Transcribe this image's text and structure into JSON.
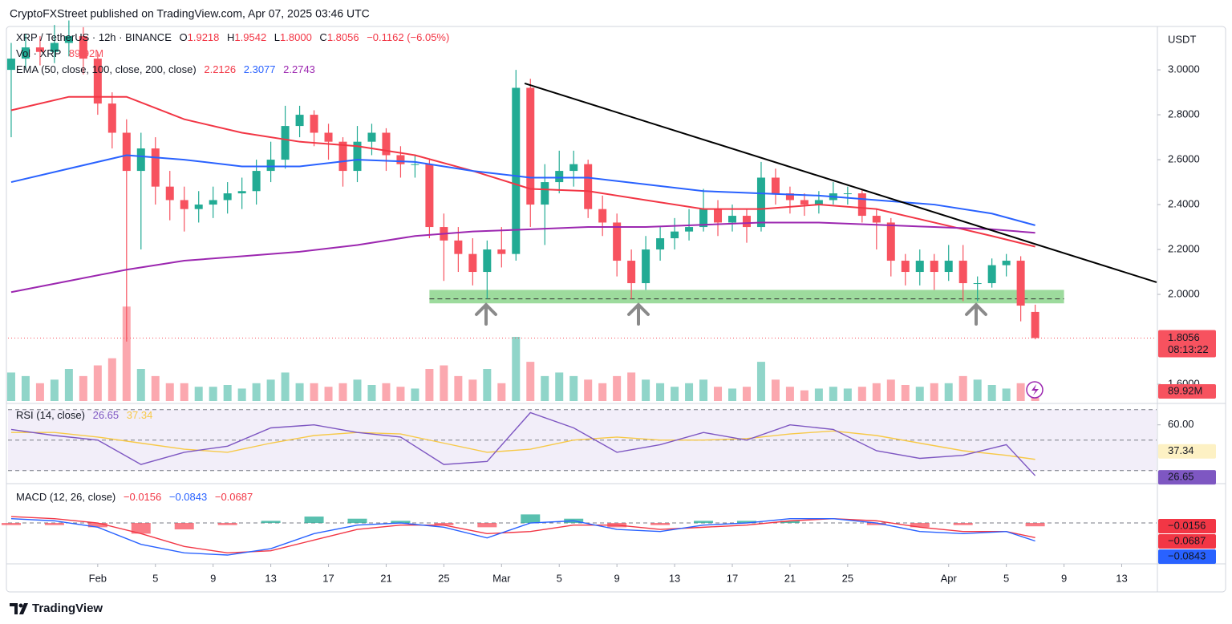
{
  "header": {
    "publisher": "CryptoFXStreet published on TradingView.com, Apr 07, 2025 03:46 UTC",
    "brand": "TradingView"
  },
  "chart_data": {
    "type": "candlestick",
    "currency": "USDT",
    "legend": {
      "symbol": "XRP / TetherUS · 12h · BINANCE",
      "o_label": "O",
      "open": "1.9218",
      "h_label": "H",
      "high": "1.9542",
      "l_label": "L",
      "low": "1.8000",
      "c_label": "C",
      "close": "1.8056",
      "change": "−0.1162 (−6.05%)",
      "ema_title": "EMA (50, close, 100, close, 200, close)"
    },
    "countdown": "08:13:22",
    "up_color": "#22ab94",
    "down_color": "#f7525f",
    "grid": false,
    "x": [
      "Jan 26",
      "Jan 27",
      "Jan 28",
      "Jan 29",
      "Jan 30",
      "Jan 31",
      "Feb 1",
      "Feb 2",
      "Feb 3",
      "Feb 4",
      "Feb 5",
      "Feb 6",
      "Feb 7",
      "Feb 8",
      "Feb 9",
      "Feb 10",
      "Feb 11",
      "Feb 12",
      "Feb 13",
      "Feb 14",
      "Feb 15",
      "Feb 16",
      "Feb 17",
      "Feb 18",
      "Feb 19",
      "Feb 20",
      "Feb 21",
      "Feb 22",
      "Feb 23",
      "Feb 24",
      "Feb 25",
      "Feb 26",
      "Feb 27",
      "Feb 28",
      "Mar 1",
      "Mar 2",
      "Mar 3",
      "Mar 4",
      "Mar 5",
      "Mar 6",
      "Mar 7",
      "Mar 8",
      "Mar 9",
      "Mar 10",
      "Mar 11",
      "Mar 12",
      "Mar 13",
      "Mar 14",
      "Mar 15",
      "Mar 16",
      "Mar 17",
      "Mar 18",
      "Mar 19",
      "Mar 20",
      "Mar 21",
      "Mar 22",
      "Mar 23",
      "Mar 24",
      "Mar 25",
      "Mar 26",
      "Mar 27",
      "Mar 28",
      "Mar 29",
      "Mar 30",
      "Mar 31",
      "Apr 1",
      "Apr 2",
      "Apr 3",
      "Apr 4",
      "Apr 5",
      "Apr 6",
      "Apr 7"
    ],
    "open": [
      3.0,
      3.05,
      3.1,
      3.08,
      3.12,
      3.15,
      3.05,
      2.85,
      2.72,
      2.55,
      2.65,
      2.48,
      2.42,
      2.38,
      2.4,
      2.42,
      2.45,
      2.46,
      2.55,
      2.6,
      2.75,
      2.8,
      2.72,
      2.68,
      2.55,
      2.68,
      2.72,
      2.62,
      2.58,
      2.58,
      2.3,
      2.24,
      2.18,
      2.1,
      2.2,
      2.18,
      2.92,
      2.4,
      2.5,
      2.55,
      2.58,
      2.38,
      2.32,
      2.15,
      2.05,
      2.2,
      2.25,
      2.28,
      2.3,
      2.38,
      2.32,
      2.35,
      2.3,
      2.52,
      2.45,
      2.42,
      2.4,
      2.42,
      2.45,
      2.45,
      2.35,
      2.32,
      2.15,
      2.1,
      2.15,
      2.1,
      2.15,
      2.05,
      2.05,
      2.13,
      2.15,
      1.9218
    ],
    "high": [
      3.12,
      3.16,
      3.15,
      3.2,
      3.22,
      3.19,
      3.08,
      2.9,
      2.78,
      2.72,
      2.7,
      2.55,
      2.48,
      2.46,
      2.48,
      2.5,
      2.52,
      2.6,
      2.68,
      2.84,
      2.84,
      2.82,
      2.76,
      2.7,
      2.75,
      2.76,
      2.74,
      2.66,
      2.62,
      2.6,
      2.36,
      2.3,
      2.25,
      2.24,
      2.3,
      3.0,
      2.96,
      2.58,
      2.64,
      2.64,
      2.6,
      2.44,
      2.36,
      2.2,
      2.26,
      2.3,
      2.34,
      2.38,
      2.47,
      2.42,
      2.4,
      2.38,
      2.59,
      2.56,
      2.48,
      2.45,
      2.46,
      2.5,
      2.48,
      2.47,
      2.38,
      2.34,
      2.18,
      2.2,
      2.18,
      2.22,
      2.22,
      2.08,
      2.16,
      2.18,
      2.17,
      1.9542
    ],
    "low": [
      2.7,
      3.0,
      3.02,
      3.03,
      3.06,
      2.98,
      2.8,
      2.65,
      1.79,
      2.2,
      2.4,
      2.33,
      2.28,
      2.32,
      2.34,
      2.36,
      2.38,
      2.4,
      2.5,
      2.56,
      2.7,
      2.66,
      2.6,
      2.48,
      2.5,
      2.62,
      2.55,
      2.52,
      2.52,
      2.25,
      2.06,
      2.1,
      2.04,
      1.98,
      2.12,
      2.15,
      2.3,
      2.22,
      2.45,
      2.48,
      2.34,
      2.26,
      2.08,
      1.98,
      2.02,
      2.15,
      2.2,
      2.24,
      2.28,
      2.26,
      2.28,
      2.23,
      2.28,
      2.4,
      2.36,
      2.35,
      2.36,
      2.4,
      2.4,
      2.32,
      2.2,
      2.08,
      2.04,
      2.04,
      2.02,
      2.06,
      1.97,
      1.97,
      2.03,
      2.08,
      1.88,
      1.8
    ],
    "close": [
      3.05,
      3.1,
      3.08,
      3.12,
      3.15,
      3.05,
      2.85,
      2.72,
      2.55,
      2.65,
      2.48,
      2.42,
      2.38,
      2.4,
      2.42,
      2.45,
      2.46,
      2.55,
      2.6,
      2.75,
      2.8,
      2.72,
      2.68,
      2.55,
      2.68,
      2.72,
      2.62,
      2.58,
      2.58,
      2.3,
      2.24,
      2.18,
      2.1,
      2.2,
      2.18,
      2.92,
      2.4,
      2.5,
      2.55,
      2.58,
      2.38,
      2.32,
      2.15,
      2.05,
      2.2,
      2.25,
      2.28,
      2.3,
      2.38,
      2.32,
      2.35,
      2.3,
      2.52,
      2.45,
      2.42,
      2.4,
      2.42,
      2.45,
      2.45,
      2.35,
      2.32,
      2.15,
      2.1,
      2.15,
      2.1,
      2.15,
      2.05,
      2.05,
      2.13,
      2.15,
      1.95,
      1.8056
    ],
    "xlim": [
      -0.22,
      79.42
    ],
    "xticks": [
      {
        "value": 6,
        "label": "Feb"
      },
      {
        "value": 10,
        "label": "5"
      },
      {
        "value": 14,
        "label": "9"
      },
      {
        "value": 18,
        "label": "13"
      },
      {
        "value": 22,
        "label": "17"
      },
      {
        "value": 26,
        "label": "21"
      },
      {
        "value": 30,
        "label": "25"
      },
      {
        "value": 34,
        "label": "Mar"
      },
      {
        "value": 38,
        "label": "5"
      },
      {
        "value": 42,
        "label": "9"
      },
      {
        "value": 46,
        "label": "13"
      },
      {
        "value": 50,
        "label": "17"
      },
      {
        "value": 54,
        "label": "21"
      },
      {
        "value": 58,
        "label": "25"
      },
      {
        "value": 65,
        "label": "Apr"
      },
      {
        "value": 69,
        "label": "5"
      },
      {
        "value": 73,
        "label": "9"
      },
      {
        "value": 77,
        "label": "13"
      }
    ],
    "ylim": [
      1.525,
      3.204
    ],
    "yticks": [
      {
        "value": 3,
        "label": "3.0000"
      },
      {
        "value": 2.8,
        "label": "2.8000"
      },
      {
        "value": 2.6,
        "label": "2.6000"
      },
      {
        "value": 2.4,
        "label": "2.4000"
      },
      {
        "value": 2.2,
        "label": "2.2000"
      },
      {
        "value": 2,
        "label": "2.0000"
      },
      {
        "value": 1.6,
        "label": "1.6000"
      }
    ],
    "ema": [
      {
        "color": "#f23645",
        "x": [
          0,
          4,
          8,
          12,
          16,
          20,
          24,
          28,
          32,
          36,
          40,
          44,
          48,
          52,
          56,
          60,
          64,
          68,
          71
        ],
        "values": [
          2.82,
          2.88,
          2.88,
          2.78,
          2.72,
          2.68,
          2.66,
          2.62,
          2.55,
          2.47,
          2.46,
          2.42,
          2.38,
          2.38,
          2.4,
          2.38,
          2.32,
          2.26,
          2.2126
        ]
      },
      {
        "color": "#2962ff",
        "x": [
          0,
          4,
          8,
          12,
          16,
          20,
          24,
          28,
          32,
          36,
          40,
          44,
          48,
          52,
          56,
          60,
          64,
          68,
          71
        ],
        "values": [
          2.5,
          2.56,
          2.62,
          2.6,
          2.57,
          2.57,
          2.6,
          2.59,
          2.55,
          2.52,
          2.52,
          2.49,
          2.46,
          2.45,
          2.44,
          2.42,
          2.4,
          2.36,
          2.3077
        ]
      },
      {
        "color": "#9c27b0",
        "x": [
          0,
          4,
          8,
          12,
          16,
          20,
          24,
          28,
          32,
          36,
          40,
          44,
          48,
          52,
          56,
          60,
          64,
          68,
          71
        ],
        "values": [
          2.01,
          2.06,
          2.11,
          2.15,
          2.17,
          2.19,
          2.22,
          2.26,
          2.28,
          2.29,
          2.3,
          2.3,
          2.31,
          2.32,
          2.32,
          2.31,
          2.3,
          2.29,
          2.2743
        ]
      }
    ],
    "trendline": {
      "x": [
        35.6,
        79.42
      ],
      "values": [
        2.94,
        2.054
      ],
      "color": "#000000"
    },
    "support_zone": {
      "x": [
        29,
        73
      ],
      "range": [
        1.96,
        2.02
      ],
      "level": 1.98,
      "color": "#7ccf7c"
    },
    "volume": {
      "title": "Vol · XRP",
      "label": "89.92M",
      "ylim": [
        0,
        2700
      ],
      "values": [
        800,
        700,
        500,
        600,
        900,
        700,
        1000,
        1200,
        2650,
        900,
        700,
        500,
        500,
        400,
        400,
        450,
        350,
        500,
        600,
        800,
        500,
        500,
        400,
        500,
        600,
        450,
        500,
        400,
        350,
        900,
        1000,
        700,
        600,
        900,
        500,
        1800,
        1100,
        700,
        800,
        700,
        600,
        500,
        700,
        800,
        600,
        500,
        400,
        500,
        600,
        400,
        350,
        400,
        1100,
        600,
        400,
        300,
        350,
        400,
        350,
        400,
        500,
        600,
        450,
        400,
        500,
        500,
        700,
        600,
        450,
        350,
        500,
        89.92
      ]
    },
    "rsi": {
      "title": "RSI (14, close)",
      "color": "#7e57c2",
      "ma_color": "#f7c948",
      "ylim": [
        23,
        73
      ],
      "bands": [
        30,
        50,
        70
      ],
      "yticks": [
        {
          "value": 60,
          "label": "60.00"
        }
      ],
      "x": [
        0,
        3,
        6,
        9,
        12,
        15,
        18,
        21,
        24,
        27,
        30,
        33,
        36,
        39,
        42,
        45,
        48,
        51,
        54,
        57,
        60,
        63,
        66,
        69,
        71
      ],
      "values": [
        57,
        53,
        50,
        34,
        42,
        46,
        58,
        60,
        55,
        52,
        34,
        36,
        68,
        58,
        42,
        47,
        55,
        50,
        60,
        57,
        43,
        38,
        40,
        47,
        26.65
      ],
      "ma": [
        55,
        55,
        52,
        48,
        44,
        42,
        48,
        53,
        55,
        54,
        48,
        42,
        44,
        50,
        52,
        50,
        50,
        51,
        54,
        56,
        53,
        48,
        43,
        40,
        37.34
      ]
    },
    "macd": {
      "title": "MACD (12, 26, close)",
      "color": "#2962ff",
      "signal_color": "#f23645",
      "ylim": [
        -0.18,
        0.169
      ],
      "x": [
        0,
        3,
        6,
        9,
        12,
        15,
        18,
        21,
        24,
        27,
        30,
        33,
        36,
        39,
        42,
        45,
        48,
        51,
        54,
        57,
        60,
        63,
        66,
        69,
        71
      ],
      "values": [
        0.02,
        0.01,
        -0.02,
        -0.1,
        -0.14,
        -0.15,
        -0.12,
        -0.05,
        -0.01,
        0.0,
        -0.02,
        -0.07,
        0.0,
        0.01,
        -0.03,
        -0.04,
        -0.01,
        0.0,
        0.02,
        0.02,
        0.0,
        -0.04,
        -0.05,
        -0.04,
        -0.0843
      ],
      "signal": [
        0.03,
        0.02,
        0.0,
        -0.05,
        -0.11,
        -0.14,
        -0.13,
        -0.08,
        -0.03,
        -0.01,
        -0.01,
        -0.05,
        -0.04,
        -0.01,
        -0.01,
        -0.03,
        -0.02,
        -0.01,
        0.01,
        0.02,
        0.01,
        -0.02,
        -0.04,
        -0.04,
        -0.0687
      ],
      "histogram": [
        -0.01,
        -0.01,
        -0.02,
        -0.05,
        -0.03,
        -0.01,
        0.01,
        0.03,
        0.02,
        0.01,
        -0.01,
        -0.02,
        0.04,
        0.02,
        -0.02,
        -0.01,
        0.01,
        0.01,
        0.01,
        0.0,
        -0.01,
        -0.02,
        -0.01,
        0.0,
        -0.0156
      ],
      "value_labels": {
        "histogram": "−0.0156",
        "values": "−0.0843",
        "signal": "−0.0687"
      }
    }
  }
}
